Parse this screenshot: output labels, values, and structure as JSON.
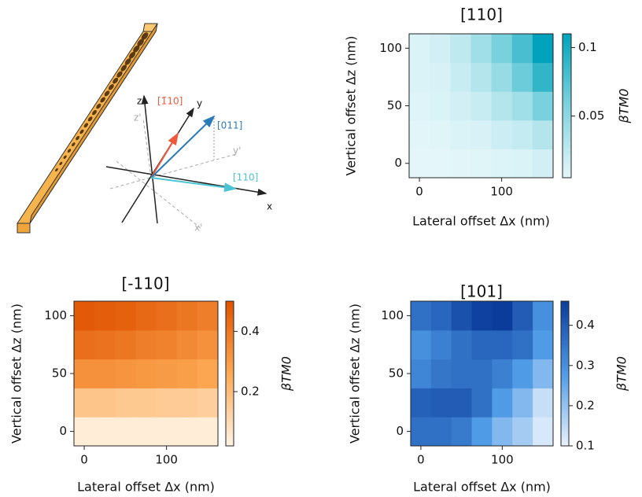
{
  "diagram": {
    "labels": [
      "z",
      "[1̄10]",
      "y",
      "[011]",
      "z'",
      "y'",
      "[110]",
      "x",
      "x'"
    ]
  },
  "chart_data": [
    {
      "type": "heatmap",
      "title": "[110]",
      "xlabel": "Lateral offset Δx (nm)",
      "ylabel": "Vertical offset Δz (nm)",
      "colorbar_label": "βTM0",
      "x": [
        0,
        25,
        50,
        75,
        100,
        125,
        150
      ],
      "y": [
        0,
        25,
        50,
        75,
        100
      ],
      "z": [
        [
          0.005,
          0.005,
          0.006,
          0.007,
          0.009,
          0.01,
          0.015
        ],
        [
          0.006,
          0.007,
          0.01,
          0.012,
          0.018,
          0.022,
          0.03
        ],
        [
          0.008,
          0.01,
          0.015,
          0.02,
          0.03,
          0.04,
          0.06
        ],
        [
          0.01,
          0.012,
          0.02,
          0.03,
          0.045,
          0.065,
          0.09
        ],
        [
          0.01,
          0.015,
          0.025,
          0.04,
          0.06,
          0.08,
          0.11
        ]
      ],
      "xlim": [
        -12.5,
        162.5
      ],
      "ylim": [
        -12.5,
        112.5
      ],
      "xticks": [
        0,
        100
      ],
      "yticks": [
        0,
        50,
        100
      ],
      "clim": [
        0.005,
        0.11
      ],
      "cticks": [
        0.05,
        0.1
      ],
      "colors": [
        "#e4f6f9",
        "#7fd3df",
        "#00a3bb"
      ]
    },
    {
      "type": "heatmap",
      "title": "[-110]",
      "xlabel": "Lateral offset Δx (nm)",
      "ylabel": "Vertical offset Δz (nm)",
      "colorbar_label": "βTM0",
      "x": [
        0,
        25,
        50,
        75,
        100,
        125,
        150
      ],
      "y": [
        0,
        25,
        50,
        75,
        100
      ],
      "z": [
        [
          0.04,
          0.04,
          0.04,
          0.04,
          0.04,
          0.04,
          0.04
        ],
        [
          0.17,
          0.17,
          0.16,
          0.16,
          0.15,
          0.15,
          0.14
        ],
        [
          0.33,
          0.33,
          0.32,
          0.31,
          0.3,
          0.29,
          0.27
        ],
        [
          0.42,
          0.41,
          0.4,
          0.38,
          0.37,
          0.35,
          0.33
        ],
        [
          0.48,
          0.47,
          0.46,
          0.44,
          0.42,
          0.4,
          0.38
        ]
      ],
      "xlim": [
        -12.5,
        162.5
      ],
      "ylim": [
        -12.5,
        112.5
      ],
      "xticks": [
        0,
        100
      ],
      "yticks": [
        0,
        50,
        100
      ],
      "clim": [
        0.02,
        0.5
      ],
      "cticks": [
        0.2,
        0.4
      ],
      "colors": [
        "#fff3e4",
        "#fdaa55",
        "#e05200"
      ]
    },
    {
      "type": "heatmap",
      "title": "[101]",
      "xlabel": "Lateral offset Δx (nm)",
      "ylabel": "Vertical offset Δz (nm)",
      "colorbar_label": "βTM0",
      "x": [
        0,
        25,
        50,
        75,
        100,
        125,
        150
      ],
      "y": [
        0,
        25,
        50,
        75,
        100
      ],
      "z": [
        [
          0.36,
          0.36,
          0.34,
          0.28,
          0.22,
          0.18,
          0.12
        ],
        [
          0.39,
          0.4,
          0.4,
          0.36,
          0.28,
          0.22,
          0.14
        ],
        [
          0.32,
          0.35,
          0.36,
          0.36,
          0.33,
          0.28,
          0.22
        ],
        [
          0.3,
          0.33,
          0.36,
          0.38,
          0.38,
          0.36,
          0.28
        ],
        [
          0.36,
          0.38,
          0.42,
          0.45,
          0.46,
          0.4,
          0.3
        ]
      ],
      "xlim": [
        -12.5,
        162.5
      ],
      "ylim": [
        -12.5,
        112.5
      ],
      "xticks": [
        0,
        100
      ],
      "yticks": [
        0,
        50,
        100
      ],
      "clim": [
        0.1,
        0.46
      ],
      "cticks": [
        0.1,
        0.2,
        0.3,
        0.4
      ],
      "colors": [
        "#e8f2fc",
        "#4f9be6",
        "#0b3c9c"
      ]
    }
  ]
}
